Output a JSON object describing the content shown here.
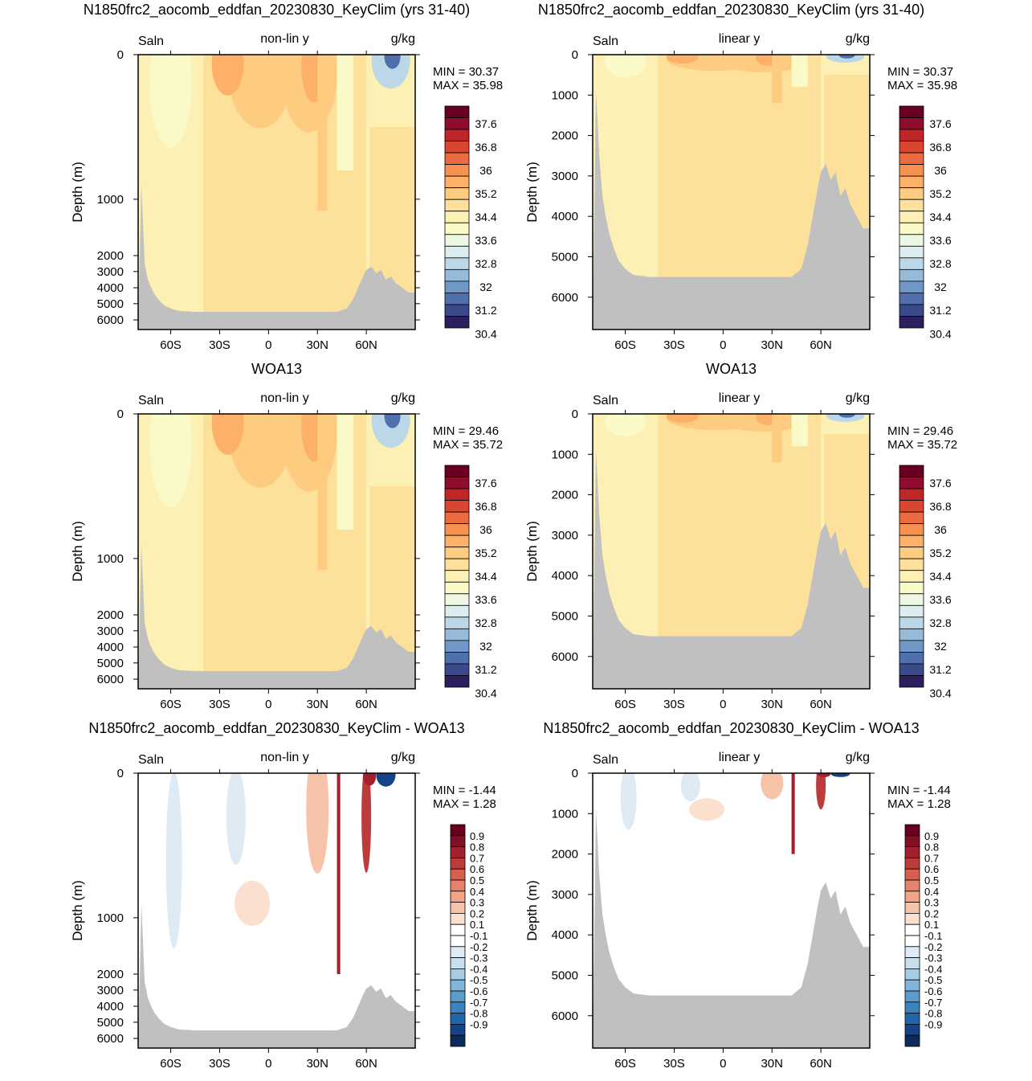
{
  "figure": {
    "colors": {
      "land": "#c0c0c0",
      "abs_scale": [
        "#2d1e5e",
        "#3a4a8a",
        "#4f6fad",
        "#6f97c8",
        "#96bbd9",
        "#bcd8e8",
        "#dcedf0",
        "#eef7e4",
        "#fafac8",
        "#fdf0b4",
        "#fde09a",
        "#fdcc80",
        "#fcb068",
        "#f69150",
        "#ea6b3f",
        "#d9452f",
        "#bf2628",
        "#8e0d2c",
        "#6a0021"
      ],
      "diff_scale": [
        "#0b2a5e",
        "#14438a",
        "#2166ac",
        "#3a84bf",
        "#5a9dcb",
        "#7fb6d9",
        "#a6cde4",
        "#c8e0ee",
        "#deebf5",
        "#ffffff",
        "#ffffff",
        "#fbe0d0",
        "#f6c3a8",
        "#f2a485",
        "#e5826a",
        "#d6604d",
        "#bd3b3b",
        "#a3202f",
        "#800f27",
        "#67001f"
      ]
    },
    "panels": [
      {
        "id": "p1",
        "title": "N1850frc2_aocomb_eddfan_20230830_KeyClim (yrs 31-40)",
        "left_label": "Saln",
        "center_label": "non-lin y",
        "right_label": "g/kg",
        "ylabel": "Depth (m)",
        "kind": "abs",
        "yscale": "nonlin",
        "min_text": "MIN =  30.37",
        "max_text": "MAX =  35.98",
        "colorbar_labels": [
          "37.6",
          "36.8",
          "36",
          "35.2",
          "34.4",
          "33.6",
          "32.8",
          "32",
          "31.2",
          "30.4"
        ]
      },
      {
        "id": "p2",
        "title": "N1850frc2_aocomb_eddfan_20230830_KeyClim (yrs 31-40)",
        "left_label": "Saln",
        "center_label": "linear y",
        "right_label": "g/kg",
        "ylabel": "Depth (m)",
        "kind": "abs",
        "yscale": "linear",
        "min_text": "MIN =  30.37",
        "max_text": "MAX =  35.98",
        "colorbar_labels": [
          "37.6",
          "36.8",
          "36",
          "35.2",
          "34.4",
          "33.6",
          "32.8",
          "32",
          "31.2",
          "30.4"
        ]
      },
      {
        "id": "p3",
        "title": "WOA13",
        "left_label": "Saln",
        "center_label": "non-lin y",
        "right_label": "g/kg",
        "ylabel": "Depth (m)",
        "kind": "abs",
        "yscale": "nonlin",
        "min_text": "MIN =  29.46",
        "max_text": "MAX =  35.72",
        "colorbar_labels": [
          "37.6",
          "36.8",
          "36",
          "35.2",
          "34.4",
          "33.6",
          "32.8",
          "32",
          "31.2",
          "30.4"
        ]
      },
      {
        "id": "p4",
        "title": "WOA13",
        "left_label": "Saln",
        "center_label": "linear y",
        "right_label": "g/kg",
        "ylabel": "Depth (m)",
        "kind": "abs",
        "yscale": "linear",
        "min_text": "MIN =  29.46",
        "max_text": "MAX =  35.72",
        "colorbar_labels": [
          "37.6",
          "36.8",
          "36",
          "35.2",
          "34.4",
          "33.6",
          "32.8",
          "32",
          "31.2",
          "30.4"
        ]
      },
      {
        "id": "p5",
        "title": "N1850frc2_aocomb_eddfan_20230830_KeyClim - WOA13",
        "left_label": "Saln",
        "center_label": "non-lin y",
        "right_label": "g/kg",
        "ylabel": "Depth (m)",
        "kind": "diff",
        "yscale": "nonlin",
        "min_text": "MIN =  -1.44",
        "max_text": "MAX =   1.28",
        "colorbar_labels": [
          "0.9",
          "0.8",
          "0.7",
          "0.6",
          "0.5",
          "0.4",
          "0.3",
          "0.2",
          "0.1",
          "-0.1",
          "-0.2",
          "-0.3",
          "-0.4",
          "-0.5",
          "-0.6",
          "-0.7",
          "-0.8",
          "-0.9"
        ]
      },
      {
        "id": "p6",
        "title": "N1850frc2_aocomb_eddfan_20230830_KeyClim - WOA13",
        "left_label": "Saln",
        "center_label": "linear y",
        "right_label": "g/kg",
        "ylabel": "Depth (m)",
        "kind": "diff",
        "yscale": "linear",
        "min_text": "MIN =  -1.44",
        "max_text": "MAX =   1.28",
        "colorbar_labels": [
          "0.9",
          "0.8",
          "0.7",
          "0.6",
          "0.5",
          "0.4",
          "0.3",
          "0.2",
          "0.1",
          "-0.1",
          "-0.2",
          "-0.3",
          "-0.4",
          "-0.5",
          "-0.6",
          "-0.7",
          "-0.8",
          "-0.9"
        ]
      }
    ]
  },
  "chart_data": [
    {
      "type": "heatmap",
      "panel": "p1",
      "title": "N1850frc2_aocomb_eddfan_20230830_KeyClim (yrs 31-40)",
      "ylabel": "Depth (m)",
      "y_scale": "non-linear",
      "x_ticks": [
        "60S",
        "30S",
        "0",
        "30N",
        "60N"
      ],
      "x_tick_values": [
        -60,
        -30,
        0,
        30,
        60
      ],
      "y_ticks": [
        "0",
        "1000",
        "2000",
        "3000",
        "4000",
        "5000",
        "6000"
      ],
      "y_tick_values": [
        0,
        1000,
        2000,
        3000,
        4000,
        5000,
        6000
      ],
      "xlim": [
        -80,
        90
      ],
      "ylim": [
        6500,
        0
      ],
      "min": 30.37,
      "max": 35.98,
      "units": "g/kg",
      "colorbar_levels": [
        30.4,
        30.8,
        31.2,
        31.6,
        32,
        32.4,
        32.8,
        33.2,
        33.6,
        34,
        34.4,
        34.8,
        35.2,
        35.6,
        36,
        36.4,
        36.8,
        37.2,
        37.6
      ]
    },
    {
      "type": "heatmap",
      "panel": "p2",
      "title": "N1850frc2_aocomb_eddfan_20230830_KeyClim (yrs 31-40)",
      "ylabel": "Depth (m)",
      "y_scale": "linear",
      "x_ticks": [
        "60S",
        "30S",
        "0",
        "30N",
        "60N"
      ],
      "x_tick_values": [
        -60,
        -30,
        0,
        30,
        60
      ],
      "y_ticks": [
        "0",
        "1000",
        "2000",
        "3000",
        "4000",
        "5000",
        "6000"
      ],
      "y_tick_values": [
        0,
        1000,
        2000,
        3000,
        4000,
        5000,
        6000
      ],
      "xlim": [
        -80,
        90
      ],
      "ylim": [
        6800,
        0
      ],
      "min": 30.37,
      "max": 35.98,
      "units": "g/kg",
      "colorbar_levels": [
        30.4,
        30.8,
        31.2,
        31.6,
        32,
        32.4,
        32.8,
        33.2,
        33.6,
        34,
        34.4,
        34.8,
        35.2,
        35.6,
        36,
        36.4,
        36.8,
        37.2,
        37.6
      ]
    },
    {
      "type": "heatmap",
      "panel": "p3",
      "title": "WOA13",
      "ylabel": "Depth (m)",
      "y_scale": "non-linear",
      "x_ticks": [
        "60S",
        "30S",
        "0",
        "30N",
        "60N"
      ],
      "x_tick_values": [
        -60,
        -30,
        0,
        30,
        60
      ],
      "y_ticks": [
        "0",
        "1000",
        "2000",
        "3000",
        "4000",
        "5000",
        "6000"
      ],
      "y_tick_values": [
        0,
        1000,
        2000,
        3000,
        4000,
        5000,
        6000
      ],
      "xlim": [
        -80,
        90
      ],
      "ylim": [
        6500,
        0
      ],
      "min": 29.46,
      "max": 35.72,
      "units": "g/kg",
      "colorbar_levels": [
        30.4,
        30.8,
        31.2,
        31.6,
        32,
        32.4,
        32.8,
        33.2,
        33.6,
        34,
        34.4,
        34.8,
        35.2,
        35.6,
        36,
        36.4,
        36.8,
        37.2,
        37.6
      ]
    },
    {
      "type": "heatmap",
      "panel": "p4",
      "title": "WOA13",
      "ylabel": "Depth (m)",
      "y_scale": "linear",
      "x_ticks": [
        "60S",
        "30S",
        "0",
        "30N",
        "60N"
      ],
      "x_tick_values": [
        -60,
        -30,
        0,
        30,
        60
      ],
      "y_ticks": [
        "0",
        "1000",
        "2000",
        "3000",
        "4000",
        "5000",
        "6000"
      ],
      "y_tick_values": [
        0,
        1000,
        2000,
        3000,
        4000,
        5000,
        6000
      ],
      "xlim": [
        -80,
        90
      ],
      "ylim": [
        6800,
        0
      ],
      "min": 29.46,
      "max": 35.72,
      "units": "g/kg",
      "colorbar_levels": [
        30.4,
        30.8,
        31.2,
        31.6,
        32,
        32.4,
        32.8,
        33.2,
        33.6,
        34,
        34.4,
        34.8,
        35.2,
        35.6,
        36,
        36.4,
        36.8,
        37.2,
        37.6
      ]
    },
    {
      "type": "heatmap",
      "panel": "p5",
      "title": "N1850frc2_aocomb_eddfan_20230830_KeyClim - WOA13",
      "ylabel": "Depth (m)",
      "y_scale": "non-linear",
      "x_ticks": [
        "60S",
        "30S",
        "0",
        "30N",
        "60N"
      ],
      "x_tick_values": [
        -60,
        -30,
        0,
        30,
        60
      ],
      "y_ticks": [
        "0",
        "1000",
        "2000",
        "3000",
        "4000",
        "5000",
        "6000"
      ],
      "y_tick_values": [
        0,
        1000,
        2000,
        3000,
        4000,
        5000,
        6000
      ],
      "xlim": [
        -80,
        90
      ],
      "ylim": [
        6500,
        0
      ],
      "min": -1.44,
      "max": 1.28,
      "units": "g/kg",
      "colorbar_levels": [
        -0.9,
        -0.8,
        -0.7,
        -0.6,
        -0.5,
        -0.4,
        -0.3,
        -0.2,
        -0.1,
        0.1,
        0.2,
        0.3,
        0.4,
        0.5,
        0.6,
        0.7,
        0.8,
        0.9
      ]
    },
    {
      "type": "heatmap",
      "panel": "p6",
      "title": "N1850frc2_aocomb_eddfan_20230830_KeyClim - WOA13",
      "ylabel": "Depth (m)",
      "y_scale": "linear",
      "x_ticks": [
        "60S",
        "30S",
        "0",
        "30N",
        "60N"
      ],
      "x_tick_values": [
        -60,
        -30,
        0,
        30,
        60
      ],
      "y_ticks": [
        "0",
        "1000",
        "2000",
        "3000",
        "4000",
        "5000",
        "6000"
      ],
      "y_tick_values": [
        0,
        1000,
        2000,
        3000,
        4000,
        5000,
        6000
      ],
      "xlim": [
        -80,
        90
      ],
      "ylim": [
        6800,
        0
      ],
      "min": -1.44,
      "max": 1.28,
      "units": "g/kg",
      "colorbar_levels": [
        -0.9,
        -0.8,
        -0.7,
        -0.6,
        -0.5,
        -0.4,
        -0.3,
        -0.2,
        -0.1,
        0.1,
        0.2,
        0.3,
        0.4,
        0.5,
        0.6,
        0.7,
        0.8,
        0.9
      ]
    }
  ]
}
